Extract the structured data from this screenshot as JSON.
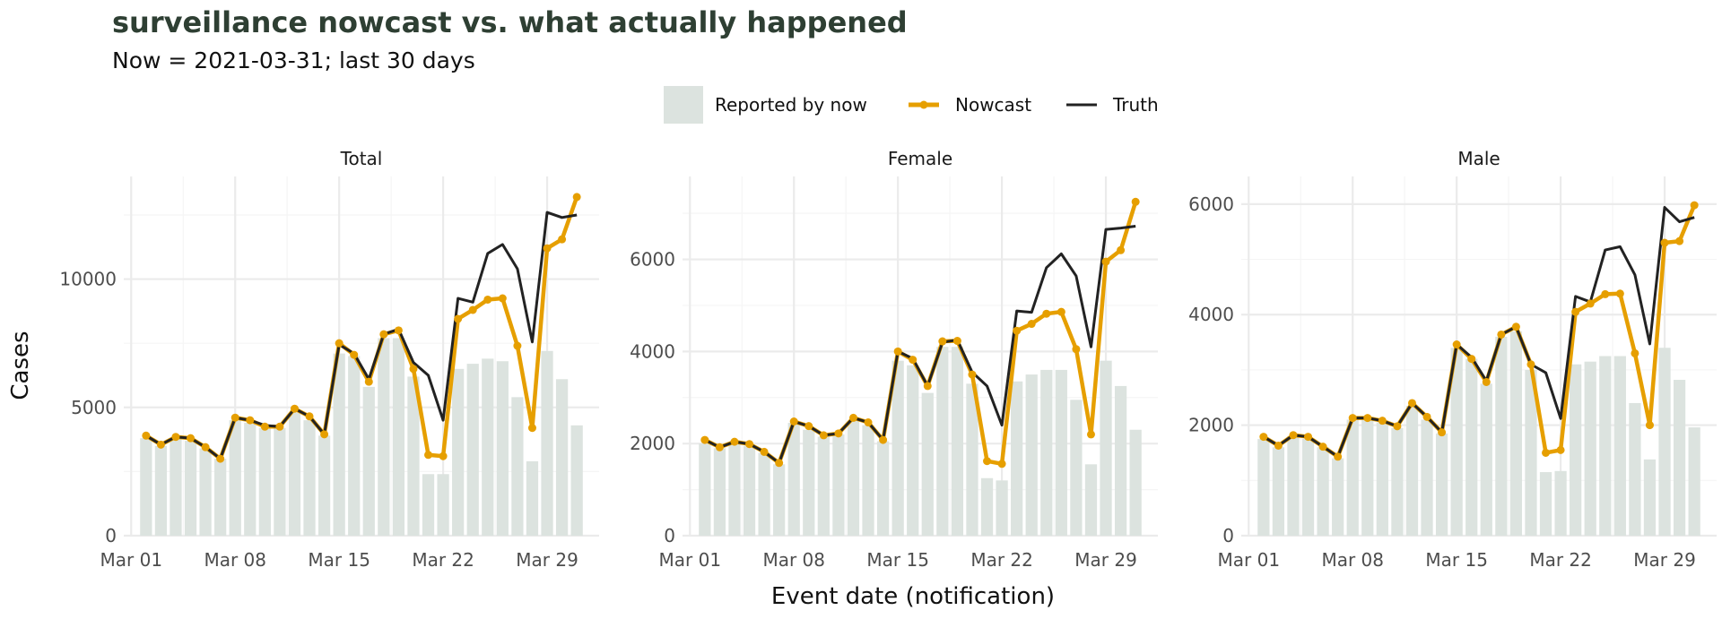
{
  "title": "surveillance nowcast vs. what actually happened",
  "subtitle": "Now = 2021-03-31; last 30 days",
  "colors": {
    "reported": "#dce3df",
    "nowcast": "#e69f00",
    "truth": "#222222",
    "title": "#2e3f33"
  },
  "legend": {
    "reported": "Reported by now",
    "nowcast": "Nowcast",
    "truth": "Truth"
  },
  "xlabel": "Event date (notification)",
  "ylabel": "Cases",
  "chart_data": [
    {
      "type": "bar",
      "panel": "Total",
      "x_start": "2021-03-02",
      "x_end": "2021-03-31",
      "xticks": [
        "Mar 01",
        "Mar 08",
        "Mar 15",
        "Mar 22",
        "Mar 29"
      ],
      "ylim": [
        0,
        14000
      ],
      "yticks": [
        0,
        5000,
        10000
      ],
      "reported": [
        3800,
        3500,
        3800,
        3700,
        3400,
        3000,
        4500,
        4400,
        4200,
        4200,
        4800,
        4500,
        3900,
        7100,
        7000,
        5800,
        7700,
        7700,
        6200,
        2400,
        2400,
        6500,
        6700,
        6900,
        6800,
        5400,
        2900,
        7200,
        6100,
        4300
      ],
      "nowcast": [
        3900,
        3550,
        3850,
        3800,
        3450,
        3000,
        4600,
        4500,
        4250,
        4250,
        4950,
        4650,
        3950,
        7500,
        7050,
        6000,
        7850,
        8000,
        6500,
        3150,
        3100,
        8450,
        8800,
        9200,
        9250,
        7400,
        4200,
        11200,
        11550,
        13200
      ],
      "truth": [
        3900,
        3550,
        3850,
        3800,
        3450,
        3000,
        4600,
        4500,
        4300,
        4250,
        4950,
        4650,
        3950,
        7450,
        7100,
        6100,
        7850,
        8050,
        6750,
        6250,
        4500,
        9250,
        9100,
        11000,
        11350,
        10400,
        7550,
        12600,
        12400,
        12500
      ]
    },
    {
      "type": "bar",
      "panel": "Female",
      "x_start": "2021-03-02",
      "x_end": "2021-03-31",
      "xticks": [
        "Mar 01",
        "Mar 08",
        "Mar 15",
        "Mar 22",
        "Mar 29"
      ],
      "ylim": [
        0,
        7800
      ],
      "yticks": [
        0,
        2000,
        4000,
        6000
      ],
      "reported": [
        2000,
        1900,
        2000,
        1950,
        1800,
        1550,
        2450,
        2300,
        2150,
        2200,
        2500,
        2400,
        2050,
        3800,
        3700,
        3100,
        4100,
        4100,
        3300,
        1250,
        1200,
        3350,
        3500,
        3600,
        3600,
        2950,
        1550,
        3800,
        3250,
        2300
      ],
      "nowcast": [
        2080,
        1920,
        2040,
        1990,
        1820,
        1580,
        2480,
        2380,
        2180,
        2220,
        2560,
        2460,
        2080,
        4000,
        3820,
        3250,
        4220,
        4230,
        3500,
        1620,
        1560,
        4450,
        4600,
        4820,
        4860,
        4050,
        2200,
        5950,
        6200,
        7250
      ],
      "truth": [
        2080,
        1920,
        2040,
        1990,
        1820,
        1580,
        2480,
        2380,
        2180,
        2220,
        2560,
        2460,
        2080,
        4000,
        3850,
        3250,
        4200,
        4250,
        3550,
        3250,
        2400,
        4880,
        4850,
        5820,
        6120,
        5640,
        4100,
        6650,
        6680,
        6720
      ]
    },
    {
      "type": "bar",
      "panel": "Male",
      "x_start": "2021-03-02",
      "x_end": "2021-03-31",
      "xticks": [
        "Mar 01",
        "Mar 08",
        "Mar 15",
        "Mar 22",
        "Mar 29"
      ],
      "ylim": [
        0,
        6500
      ],
      "yticks": [
        0,
        2000,
        4000,
        6000
      ],
      "reported": [
        1750,
        1600,
        1800,
        1750,
        1600,
        1400,
        2100,
        2100,
        2050,
        1950,
        2350,
        2100,
        1850,
        3400,
        3200,
        2750,
        3600,
        3700,
        3000,
        1150,
        1170,
        3100,
        3150,
        3250,
        3250,
        2400,
        1380,
        3400,
        2820,
        1960
      ],
      "nowcast": [
        1790,
        1630,
        1820,
        1790,
        1610,
        1430,
        2130,
        2130,
        2080,
        1980,
        2400,
        2150,
        1870,
        3460,
        3200,
        2780,
        3640,
        3780,
        3100,
        1500,
        1550,
        4050,
        4200,
        4370,
        4380,
        3300,
        2000,
        5300,
        5330,
        5980
      ],
      "truth": [
        1790,
        1630,
        1820,
        1790,
        1610,
        1430,
        2130,
        2130,
        2080,
        1980,
        2400,
        2150,
        1870,
        3460,
        3230,
        2800,
        3640,
        3780,
        3100,
        2950,
        2120,
        4330,
        4230,
        5170,
        5230,
        4720,
        3470,
        5940,
        5680,
        5760
      ]
    }
  ]
}
